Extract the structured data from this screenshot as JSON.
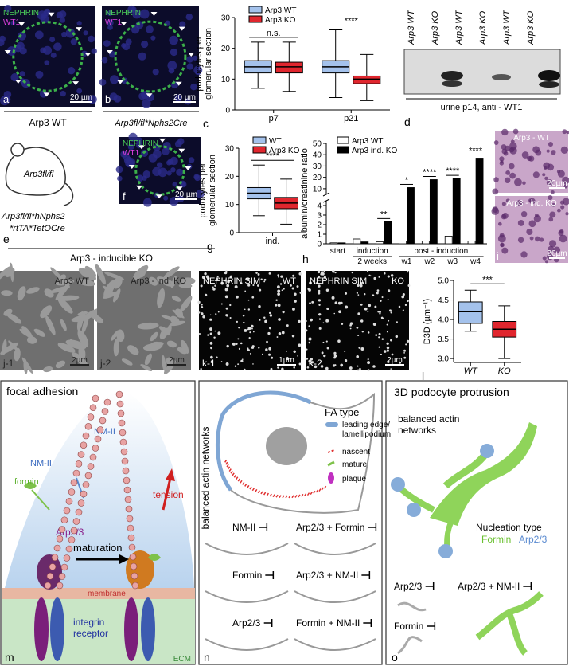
{
  "panels": {
    "a": {
      "stain_1": "NEPHRIN",
      "stain_2": "WT1",
      "scale": "20 µm",
      "label": "a",
      "caption": "Arp3 WT"
    },
    "b": {
      "stain_1": "NEPHRIN",
      "stain_2": "WT1",
      "scale": "20 µm",
      "label": "b",
      "caption": "Arp3fl/fl*Nphs2Cre"
    },
    "d": {
      "lanes": [
        "Arp3 WT",
        "Arp3 KO",
        "Arp3 WT",
        "Arp3 KO",
        "Arp3 WT",
        "Arp3 KO"
      ],
      "caption": "urine p14, anti - WT1",
      "label": "d"
    },
    "e": {
      "mouse": "Arp3fl/fl",
      "genotype": [
        "Arp3fl/fl*hNphs2",
        "*rtTA*TetOCre"
      ],
      "label": "e",
      "caption": "Arp3 - inducible KO"
    },
    "f": {
      "stain_1": "NEPHRIN",
      "stain_2": "WT1",
      "scale": "20 µm",
      "label": "f"
    },
    "i": {
      "top": "Arp3 - WT",
      "top_scale": "20µm",
      "bottom": "Arp3 - ind. KO",
      "bottom_scale": "20µm",
      "label": "i"
    },
    "j1": {
      "title": "Arp3 WT",
      "scale": "2µm",
      "label": "j-1"
    },
    "j2": {
      "title": "Arp3 - ind. KO",
      "scale": "2µm",
      "label": "j-2"
    },
    "k1": {
      "title": "NEPHRIN SIM",
      "condition": "WT",
      "scale": "1µm",
      "label": "k-1"
    },
    "k2": {
      "title": "NEPHRIN SIM",
      "condition": "KO",
      "scale": "2µm",
      "label": "k-2"
    },
    "m": {
      "title": "focal adhesion",
      "nm2_left": "NM-II",
      "formin": "formin",
      "nm2_right": "NM-II",
      "tension": "tension",
      "maturation": "maturation",
      "arp23": "Arp2/3",
      "membrane": "membrane",
      "integrin_receptor": [
        "integrin",
        "receptor"
      ],
      "ecm": "ECM",
      "label": "m"
    },
    "n": {
      "side_title": "balanced actin networks",
      "fa_type": "FA type",
      "leading_edge": [
        "leading edge/",
        "lamellipodium"
      ],
      "nascent": "nascent",
      "mature": "mature",
      "plaque": "plaque",
      "conditions": [
        "NM-II",
        "Arp2/3 + Formin",
        "Formin",
        "Arp2/3 + NM-II",
        "Arp2/3",
        "Formin + NM-II"
      ],
      "label": "n"
    },
    "o": {
      "title": "3D podocyte protrusion",
      "balanced": [
        "balanced actin",
        "networks"
      ],
      "nucleation_type": "Nucleation type",
      "formin": "Formin",
      "arp23": "Arp2/3",
      "conditions": [
        "Arp2/3",
        "Arp2/3 + NM-II",
        "Formin"
      ],
      "label": "o"
    }
  },
  "chart_data": [
    {
      "type": "box",
      "panel_label": "c",
      "y_label": [
        "podocytes per",
        "glomerular section"
      ],
      "categories": [
        "p7",
        "p21"
      ],
      "ylim": [
        0,
        30
      ],
      "yticks": [
        0,
        10,
        20,
        30
      ],
      "series": [
        {
          "name": "Arp3 WT",
          "color": "#a4c2ec",
          "values": [
            {
              "min": 7,
              "q1": 12,
              "median": 14,
              "q3": 16,
              "max": 22
            },
            {
              "min": 4,
              "q1": 12,
              "median": 14,
              "q3": 16,
              "max": 26
            }
          ]
        },
        {
          "name": "Arp3 KO",
          "color": "#e0262e",
          "values": [
            {
              "min": 6,
              "q1": 12,
              "median": 14,
              "q3": 15.5,
              "max": 22
            },
            {
              "min": 3,
              "q1": 8.5,
              "median": 10,
              "q3": 11,
              "max": 18
            }
          ]
        }
      ],
      "annotations": [
        "n.s.",
        "****"
      ]
    },
    {
      "type": "box",
      "panel_label": "g",
      "y_label": [
        "podocytes per",
        "glomerular section"
      ],
      "categories": [
        "ind."
      ],
      "ylim": [
        0,
        30
      ],
      "yticks": [
        0,
        10,
        20,
        30
      ],
      "series": [
        {
          "name": "WT",
          "color": "#a4c2ec",
          "values": [
            {
              "min": 6,
              "q1": 12,
              "median": 14,
              "q3": 16,
              "max": 24
            }
          ]
        },
        {
          "name": "Arp3 KO",
          "color": "#e0262e",
          "values": [
            {
              "min": 3,
              "q1": 8.5,
              "median": 10.5,
              "q3": 12.5,
              "max": 19
            }
          ]
        }
      ],
      "annotations": [
        "****"
      ]
    },
    {
      "type": "broken_bar",
      "panel_label": "h",
      "y_label": "albumin/creatinine ratio",
      "categories": [
        "start",
        null,
        null,
        "w1",
        "w2",
        "w3",
        "w4"
      ],
      "group_labels": [
        "induction",
        "2 weeks",
        "post - induction"
      ],
      "ylim_lower": [
        0,
        4.5
      ],
      "yticks_lower": [
        0,
        1,
        2,
        3,
        4
      ],
      "ylim_upper": [
        5,
        50
      ],
      "yticks_upper": [
        10,
        20,
        30,
        40,
        50
      ],
      "series": [
        {
          "name": "Arp3 WT",
          "color": "#ffffff",
          "values": [
            0.1,
            0.5,
            0.2,
            0.3,
            0.3,
            0.8,
            0.3
          ]
        },
        {
          "name": "Arp3 ind. KO",
          "color": "#000000",
          "values": [
            0.1,
            0.2,
            2.3,
            11,
            18,
            19,
            37
          ]
        }
      ],
      "significance": [
        null,
        null,
        "**",
        "*",
        "****",
        "****",
        "****"
      ]
    },
    {
      "type": "box",
      "panel_label": "l",
      "y_label": [
        "D3D (µm⁻¹)"
      ],
      "categories": [
        "WT",
        "KO"
      ],
      "ylim": [
        2.9,
        5.0
      ],
      "yticks": [
        {
          "value": 3,
          "label": "3.0"
        },
        {
          "value": 3.5,
          "label": "3.5"
        },
        {
          "value": 4,
          "label": "4.0"
        },
        {
          "value": 4.5,
          "label": "4.5"
        },
        {
          "value": 5,
          "label": "5.0"
        }
      ],
      "series": [
        {
          "colors": [
            "#a4c2ec",
            "#e0262e"
          ],
          "values": [
            {
              "min": 3.7,
              "q1": 3.9,
              "median": 4.2,
              "q3": 4.45,
              "max": 4.75
            },
            {
              "min": 3.0,
              "q1": 3.55,
              "median": 3.75,
              "q3": 3.95,
              "max": 4.35
            }
          ]
        }
      ],
      "annotations": [
        "***"
      ]
    }
  ]
}
